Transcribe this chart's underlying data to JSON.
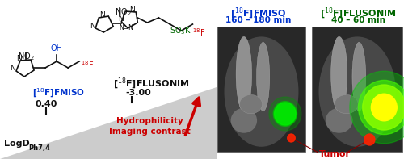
{
  "bg_color": "#ffffff",
  "blue_color": "#0033cc",
  "green_color": "#006600",
  "red_color": "#cc0000",
  "dark_red_color": "#990000",
  "black_color": "#111111",
  "gray_triangle": "#cccccc",
  "pet_bg": "#303030",
  "pet_bone": "#a0a0a0",
  "pet_dark": "#181818",
  "right_panel_fmiso_label": "[$^{18}$F]FMISO",
  "right_panel_fmiso_time": "160 – 180 min",
  "right_panel_flusonim_label": "[$^{18}$F]FLUSONIM",
  "right_panel_flusonim_time": "40 – 60 min",
  "tumor_label": "Tumor",
  "hydrophilicity_text": "Hydrophilicity\nImaging contrast",
  "logd_label": "LogD",
  "logd_sub": "Ph7,4",
  "fmiso_val": "0.40",
  "flusonim_val": "-3.00",
  "no2_label": "NO$_2$",
  "so3k_label": "SO$_3$K",
  "oh_label": "OH"
}
